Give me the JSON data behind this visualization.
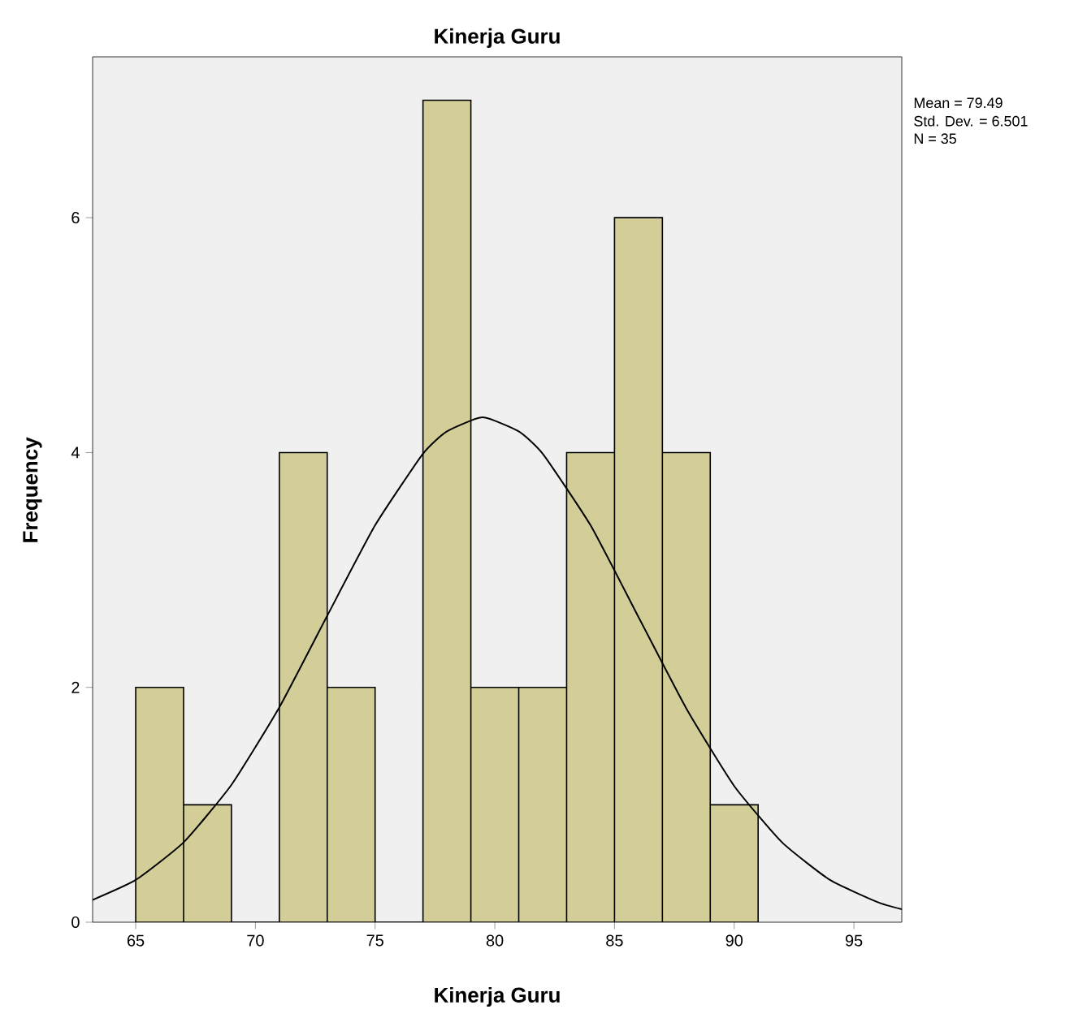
{
  "chart_data": {
    "type": "histogram",
    "title": "Kinerja Guru",
    "xlabel": "Kinerja Guru",
    "ylabel": "Frequency",
    "bins": [
      65,
      67,
      69,
      71,
      73,
      75,
      77,
      79,
      81,
      83,
      85,
      87,
      89,
      91
    ],
    "values": [
      2,
      1,
      0,
      4,
      2,
      0,
      7,
      2,
      2,
      4,
      6,
      4,
      1
    ],
    "color": "#d3ce97",
    "series": [
      {
        "type": "line",
        "color": "#000000",
        "x": [
          63.2,
          65,
          67,
          69,
          71,
          73,
          75,
          77,
          78,
          79.49,
          81,
          82,
          84,
          86,
          88,
          90,
          92,
          94,
          96,
          97
        ],
        "values": [
          0.19,
          0.36,
          0.68,
          1.17,
          1.83,
          2.61,
          3.38,
          3.99,
          4.18,
          4.3,
          4.18,
          3.99,
          3.38,
          2.6,
          1.82,
          1.16,
          0.68,
          0.36,
          0.17,
          0.11
        ]
      }
    ],
    "xlim": [
      63.2,
      97.0
    ],
    "ylim": [
      0,
      7.37
    ],
    "xticks": [
      65,
      70,
      75,
      80,
      85,
      90,
      95
    ],
    "yticks": [
      0,
      2,
      4,
      6
    ],
    "grid": false,
    "annotations": [
      "Mean = 79.49",
      "Std. Dev. = 6.501",
      "N = 35"
    ]
  }
}
